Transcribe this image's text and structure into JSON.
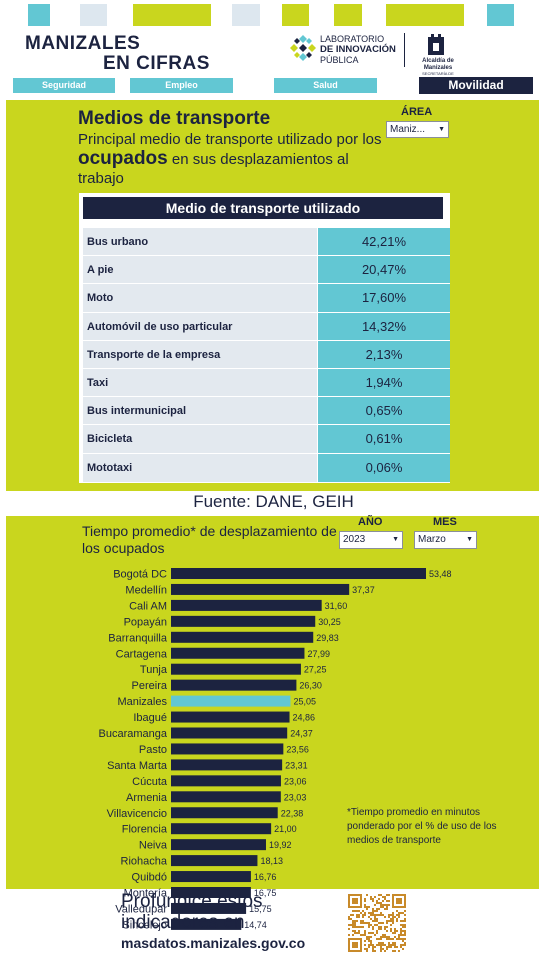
{
  "header": {
    "title_line1": "MANIZALES",
    "title_line2": "EN CIFRAS",
    "lab_line1": "LABORATORIO",
    "lab_line2": "DE INNOVACIÓN",
    "lab_line3": "PÚBLICA",
    "alcaldia": "Alcaldía de Manizales",
    "alcaldia_sub": "SECRETARÍA DE PLANEACIÓN"
  },
  "nav": {
    "tabs": [
      {
        "label": "Seguridad"
      },
      {
        "label": "Empleo"
      },
      {
        "label": "Salud"
      },
      {
        "label": "Movilidad"
      }
    ]
  },
  "transport": {
    "title": "Medios de transporte",
    "subtitle_pre": "Principal medio de transporte utilizado por los",
    "subtitle_strong": "ocupados",
    "subtitle_post": "en sus desplazamientos al trabajo",
    "area_label": "ÁREA",
    "area_value": "Maniz...",
    "table_header": "Medio de transporte utilizado",
    "rows": [
      {
        "label": "Bus urbano",
        "value": "42,21%"
      },
      {
        "label": "A pie",
        "value": "20,47%"
      },
      {
        "label": "Moto",
        "value": "17,60%"
      },
      {
        "label": "Automóvil de uso particular",
        "value": "14,32%"
      },
      {
        "label": "Transporte de la empresa",
        "value": "2,13%"
      },
      {
        "label": "Taxi",
        "value": "1,94%"
      },
      {
        "label": "Bus intermunicipal",
        "value": "0,65%"
      },
      {
        "label": "Bicicleta",
        "value": "0,61%"
      },
      {
        "label": "Mototaxi",
        "value": "0,06%"
      }
    ],
    "source": "Fuente: DANE, GEIH"
  },
  "commute": {
    "title": "Tiempo promedio* de desplazamiento de los ocupados",
    "year_label": "AÑO",
    "year_value": "2023",
    "month_label": "MES",
    "month_value": "Marzo",
    "note": "*Tiempo promedio en minutos ponderado por el % de uso de los medios de transporte"
  },
  "chart_data": {
    "type": "bar",
    "orientation": "horizontal",
    "categories": [
      "Bogotá DC",
      "Medellín",
      "Cali AM",
      "Popayán",
      "Barranquilla",
      "Cartagena",
      "Tunja",
      "Pereira",
      "Manizales",
      "Ibagué",
      "Bucaramanga",
      "Pasto",
      "Santa Marta",
      "Cúcuta",
      "Armenia",
      "Villavicencio",
      "Florencia",
      "Neiva",
      "Riohacha",
      "Quibdó",
      "Montería",
      "Valledupar",
      "Sincelejo"
    ],
    "values": [
      53.48,
      37.37,
      31.6,
      30.25,
      29.83,
      27.99,
      27.25,
      26.3,
      25.05,
      24.86,
      24.37,
      23.56,
      23.31,
      23.06,
      23.03,
      22.38,
      21.0,
      19.92,
      18.13,
      16.76,
      16.75,
      15.75,
      14.74
    ],
    "value_labels": [
      "53,48",
      "37,37",
      "31,60",
      "30,25",
      "29,83",
      "27,99",
      "27,25",
      "26,30",
      "25,05",
      "24,86",
      "24,37",
      "23,56",
      "23,31",
      "23,06",
      "23,03",
      "22,38",
      "21,00",
      "19,92",
      "18,13",
      "16,76",
      "16,75",
      "15,75",
      "14,74"
    ],
    "highlight": "Manizales",
    "bar_color": "#1c2340",
    "highlight_color": "#62c7d3",
    "title": "",
    "xlabel": "",
    "ylabel": "",
    "xlim": [
      0,
      53.48
    ],
    "grid": false
  },
  "footer": {
    "line1": "Profundice estos",
    "line2": "indicadores en",
    "url": "masdatos.manizales.gov.co"
  },
  "colors": {
    "navy": "#1c2340",
    "lime": "#c9d61e",
    "teal": "#62c7d3",
    "pale": "#dde7ef"
  }
}
